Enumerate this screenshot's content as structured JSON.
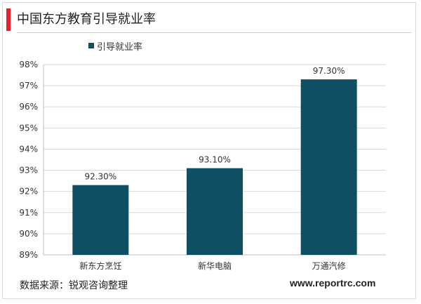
{
  "header": {
    "title": "中国东方教育引导就业率",
    "accent_color": "#e8202a"
  },
  "chart_data": {
    "type": "bar",
    "categories": [
      "新东方烹饪",
      "新华电脑",
      "万通汽修"
    ],
    "series": [
      {
        "name": "引导就业率",
        "values": [
          92.3,
          93.1,
          97.3
        ],
        "data_labels": [
          "92.30%",
          "93.10%",
          "97.30%"
        ],
        "color": "#0e4f63"
      }
    ],
    "yticks": [
      "89%",
      "90%",
      "91%",
      "92%",
      "93%",
      "94%",
      "95%",
      "96%",
      "97%",
      "98%"
    ],
    "ylim": [
      89,
      98
    ],
    "grid": true,
    "legend_position": "top-left"
  },
  "footer": {
    "source": "数据来源：锐观咨询整理",
    "website": "www.reportrc.com"
  }
}
